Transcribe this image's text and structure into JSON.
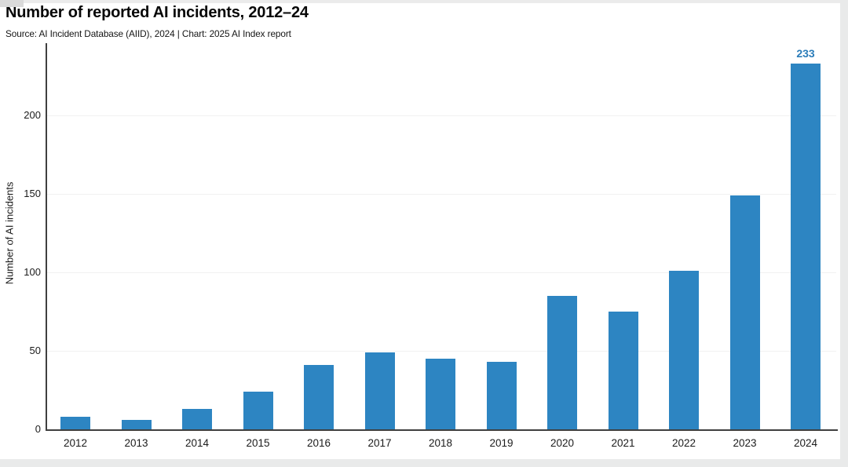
{
  "header": {
    "title": "Number of reported AI incidents, 2012–24",
    "source_line": "Source: AI Incident Database (AIID), 2024 | Chart: 2025 AI Index report"
  },
  "chart_data": {
    "type": "bar",
    "title": "Number of reported AI incidents, 2012–24",
    "source": "Source: AI Incident Database (AIID), 2024 | Chart: 2025 AI Index report",
    "categories": [
      "2012",
      "2013",
      "2014",
      "2015",
      "2016",
      "2017",
      "2018",
      "2019",
      "2020",
      "2021",
      "2022",
      "2023",
      "2024"
    ],
    "values": [
      8,
      6,
      13,
      24,
      41,
      49,
      45,
      43,
      85,
      75,
      101,
      149,
      233
    ],
    "xlabel": "",
    "ylabel": "Number of AI incidents",
    "y_ticks": [
      0,
      50,
      100,
      150,
      200
    ],
    "ylim": [
      0,
      246
    ],
    "grid": "faint horizontal gridlines at y ticks",
    "legend": "none",
    "bar_color": "#2d85c2",
    "annotations": [
      {
        "category": "2024",
        "text": "233",
        "color": "#2a7cb9"
      }
    ]
  }
}
